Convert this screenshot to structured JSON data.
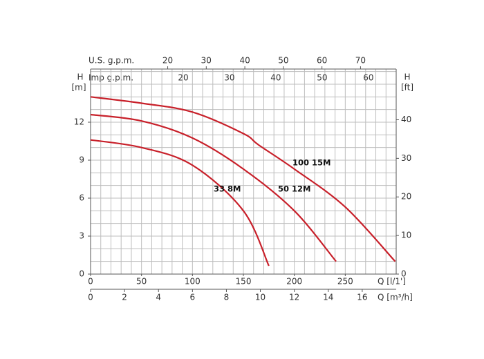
{
  "chart_data": {
    "type": "line",
    "x_label": "Q [l/1']",
    "y_label": "H",
    "y_unit": "[m]",
    "y2_label": "H",
    "y2_unit": "[ft]",
    "xlim": [
      0,
      300
    ],
    "xticks": [
      0,
      50,
      100,
      150,
      200,
      250
    ],
    "xminor": [
      0,
      10,
      20,
      30,
      40,
      50,
      60,
      70,
      80,
      90,
      100,
      110,
      120,
      130,
      140,
      150,
      160,
      170,
      180,
      190,
      200,
      210,
      220,
      230,
      240,
      250,
      260,
      270,
      280,
      290,
      300
    ],
    "ylim": [
      0,
      16.2
    ],
    "yticks": [
      0,
      3,
      6,
      9,
      12
    ],
    "yminor": [
      0,
      1,
      2,
      3,
      4,
      5,
      6,
      7,
      8,
      9,
      10,
      11,
      12,
      13,
      14,
      15,
      16
    ],
    "y2lim": [
      0,
      53.15
    ],
    "y2ticks": [
      0,
      10,
      20,
      30,
      40
    ],
    "x2_axis": {
      "label": "Q [m³/h]",
      "lim": [
        0,
        18
      ],
      "ticks": [
        0,
        2,
        4,
        6,
        8,
        10,
        12,
        14,
        16
      ]
    },
    "imp_axis": {
      "label": "Imp g.p.m.",
      "lim": [
        0,
        65.99
      ],
      "ticks": [
        20,
        30,
        40,
        50,
        60
      ]
    },
    "us_axis": {
      "label": "U.S. g.p.m.",
      "lim": [
        0,
        79.25
      ],
      "ticks": [
        20,
        30,
        40,
        50,
        60,
        70
      ]
    },
    "series": [
      {
        "name": "100 15M",
        "color": "#c8202a",
        "x": [
          0,
          50,
          100,
          150,
          165,
          200,
          250,
          299
        ],
        "values": [
          14.0,
          13.5,
          12.8,
          11.1,
          10.2,
          8.3,
          5.3,
          1.0
        ]
      },
      {
        "name": "50 12M",
        "color": "#c8202a",
        "x": [
          0,
          50,
          100,
          150,
          200,
          241
        ],
        "values": [
          12.6,
          12.1,
          10.75,
          8.3,
          5.0,
          1.0
        ]
      },
      {
        "name": "33 8M",
        "color": "#c8202a",
        "x": [
          0,
          50,
          100,
          150,
          175
        ],
        "values": [
          10.6,
          10.0,
          8.6,
          5.0,
          0.65
        ]
      }
    ]
  }
}
